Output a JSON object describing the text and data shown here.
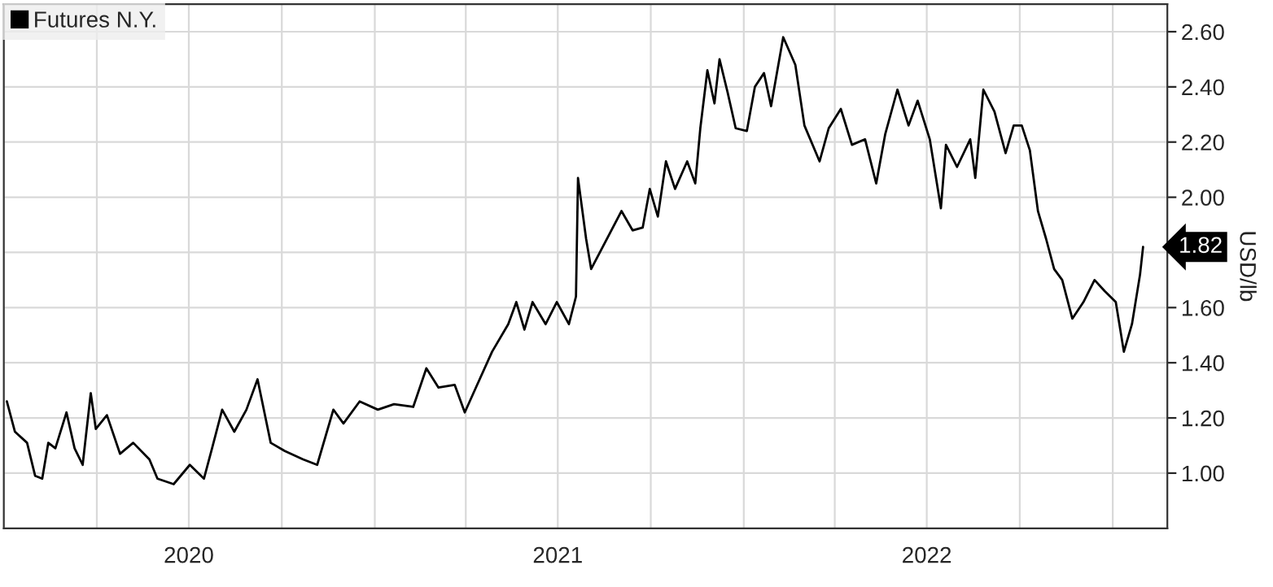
{
  "chart_data": {
    "type": "line",
    "ylabel": "USD/lb",
    "legend": "top left",
    "grid": true,
    "marker": "none",
    "line_style": "solid",
    "xlim": [
      "2019-12-31",
      "2023-02-24"
    ],
    "ylim": [
      0.8,
      2.7
    ],
    "yticks": [
      {
        "value": 1.0,
        "label": "1.00"
      },
      {
        "value": 1.2,
        "label": "1.20"
      },
      {
        "value": 1.4,
        "label": "1.40"
      },
      {
        "value": 1.6,
        "label": "1.60"
      },
      {
        "value": 1.8,
        "label": null
      },
      {
        "value": 2.0,
        "label": "2.00"
      },
      {
        "value": 2.2,
        "label": "2.20"
      },
      {
        "value": 2.4,
        "label": "2.40"
      },
      {
        "value": 2.6,
        "label": "2.60"
      }
    ],
    "xticks": [
      {
        "value": "2020-04-01",
        "label": null
      },
      {
        "value": "2020-07-01",
        "label": "2020"
      },
      {
        "value": "2020-10-01",
        "label": null
      },
      {
        "value": "2021-01-01",
        "label": null
      },
      {
        "value": "2021-04-01",
        "label": null
      },
      {
        "value": "2021-07-01",
        "label": "2021"
      },
      {
        "value": "2021-10-01",
        "label": null
      },
      {
        "value": "2022-01-01",
        "label": null
      },
      {
        "value": "2022-04-01",
        "label": null
      },
      {
        "value": "2022-07-01",
        "label": "2022"
      },
      {
        "value": "2022-10-01",
        "label": null
      },
      {
        "value": "2023-01-01",
        "label": null
      }
    ],
    "annotations": [
      "1.82"
    ],
    "x": [
      "2020-01-03",
      "2020-01-11",
      "2020-01-23",
      "2020-01-31",
      "2020-02-07",
      "2020-02-13",
      "2020-02-20",
      "2020-03-02",
      "2020-03-10",
      "2020-03-18",
      "2020-03-26",
      "2020-03-31",
      "2020-04-11",
      "2020-04-24",
      "2020-05-07",
      "2020-05-23",
      "2020-05-31",
      "2020-06-16",
      "2020-07-02",
      "2020-07-16",
      "2020-07-24",
      "2020-08-03",
      "2020-08-15",
      "2020-08-27",
      "2020-09-07",
      "2020-09-20",
      "2020-10-04",
      "2020-10-22",
      "2020-11-05",
      "2020-11-21",
      "2020-12-01",
      "2020-12-17",
      "2021-01-04",
      "2021-01-20",
      "2021-02-08",
      "2021-02-21",
      "2021-03-05",
      "2021-03-21",
      "2021-03-31",
      "2021-04-11",
      "2021-04-27",
      "2021-05-13",
      "2021-05-21",
      "2021-05-29",
      "2021-06-06",
      "2021-06-19",
      "2021-06-30",
      "2021-07-12",
      "2021-07-19",
      "2021-07-21",
      "2021-07-29",
      "2021-08-03",
      "2021-09-02",
      "2021-09-13",
      "2021-09-23",
      "2021-09-30",
      "2021-10-08",
      "2021-10-16",
      "2021-10-25",
      "2021-11-06",
      "2021-11-14",
      "2021-11-19",
      "2021-11-26",
      "2021-12-03",
      "2021-12-08",
      "2021-12-16",
      "2021-12-24",
      "2022-01-04",
      "2022-01-12",
      "2022-01-21",
      "2022-01-28",
      "2022-02-09",
      "2022-02-21",
      "2022-03-02",
      "2022-03-17",
      "2022-03-26",
      "2022-04-07",
      "2022-04-18",
      "2022-05-01",
      "2022-05-12",
      "2022-05-21",
      "2022-06-02",
      "2022-06-13",
      "2022-06-22",
      "2022-07-04",
      "2022-07-15",
      "2022-07-20",
      "2022-07-31",
      "2022-08-13",
      "2022-08-18",
      "2022-08-26",
      "2022-09-06",
      "2022-09-17",
      "2022-09-25",
      "2022-10-03",
      "2022-10-11",
      "2022-10-19",
      "2022-10-27",
      "2022-11-04",
      "2022-11-12",
      "2022-11-22",
      "2022-12-03",
      "2022-12-14",
      "2022-12-24",
      "2023-01-04",
      "2023-01-12",
      "2023-01-20",
      "2023-01-28",
      "2023-01-31"
    ],
    "series": [
      {
        "name": "Futures N.Y.",
        "color": "#000000",
        "values": [
          1.26,
          1.15,
          1.11,
          0.99,
          0.98,
          1.11,
          1.09,
          1.22,
          1.09,
          1.03,
          1.29,
          1.16,
          1.21,
          1.07,
          1.11,
          1.05,
          0.98,
          0.96,
          1.03,
          0.98,
          1.09,
          1.23,
          1.15,
          1.23,
          1.34,
          1.11,
          1.08,
          1.05,
          1.03,
          1.23,
          1.18,
          1.26,
          1.23,
          1.25,
          1.24,
          1.38,
          1.31,
          1.32,
          1.22,
          1.31,
          1.44,
          1.54,
          1.62,
          1.52,
          1.62,
          1.54,
          1.62,
          1.54,
          1.64,
          2.07,
          1.85,
          1.74,
          1.95,
          1.88,
          1.89,
          2.03,
          1.93,
          2.13,
          2.03,
          2.13,
          2.05,
          2.25,
          2.46,
          2.34,
          2.5,
          2.38,
          2.25,
          2.24,
          2.4,
          2.45,
          2.33,
          2.58,
          2.48,
          2.26,
          2.13,
          2.25,
          2.32,
          2.19,
          2.21,
          2.05,
          2.23,
          2.39,
          2.26,
          2.35,
          2.21,
          1.96,
          2.19,
          2.11,
          2.21,
          2.07,
          2.39,
          2.31,
          2.16,
          2.26,
          2.26,
          2.17,
          1.95,
          1.85,
          1.74,
          1.7,
          1.56,
          1.62,
          1.7,
          1.66,
          1.62,
          1.44,
          1.54,
          1.72,
          1.82
        ]
      }
    ]
  }
}
